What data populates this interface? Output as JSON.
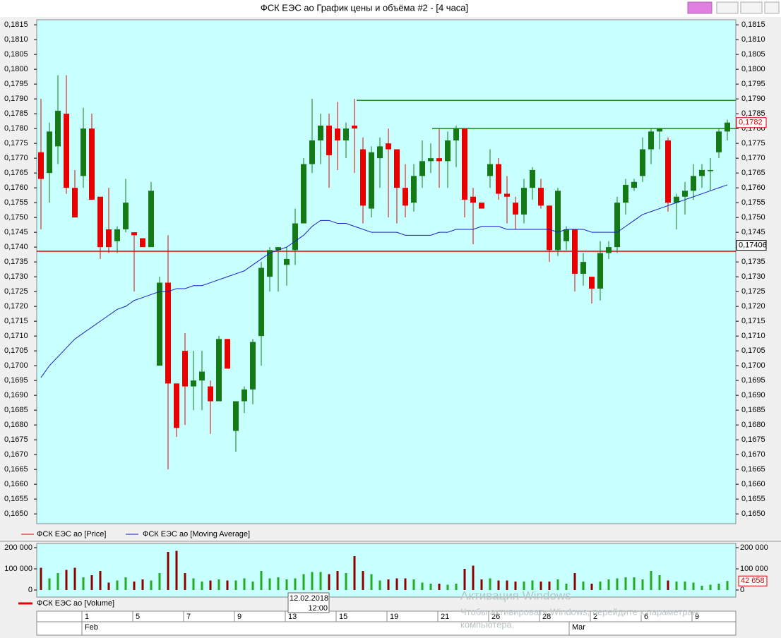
{
  "window": {
    "title": "ФСК ЕЭС ао График цены и объёма #2 - [4 часа]"
  },
  "chart_data": [
    {
      "type": "candlestick",
      "series": [
        {
          "name": "ФСК ЕЭС ао [Price]",
          "color_up": "#157a15",
          "color_down": "#e60000",
          "open": [
            0.1772,
            0.1765,
            0.1774,
            0.1785,
            0.176,
            0.1764,
            0.178,
            0.1757,
            0.1746,
            0.1742,
            0.1746,
            0.1745,
            0.1743,
            0.174,
            0.17,
            0.1728,
            0.1694,
            0.1705,
            0.1693,
            0.1695,
            0.1693,
            0.1688,
            0.1709,
            0.1678,
            0.1688,
            0.1692,
            0.171,
            0.173,
            0.1739,
            0.1734,
            0.1739,
            0.1748,
            0.1768,
            0.1776,
            0.1781,
            0.178,
            0.1776,
            0.1781,
            0.1773,
            0.1753,
            0.177,
            0.1775,
            0.1773,
            0.176,
            0.1755,
            0.1764,
            0.1769,
            0.177,
            0.1769,
            0.1776,
            0.178,
            0.1757,
            0.1755,
            0.1764,
            0.1768,
            0.1758,
            0.1755,
            0.1751,
            0.176,
            0.176,
            0.1754,
            0.1739,
            0.1742,
            0.1746,
            0.1731,
            0.173,
            0.1726,
            0.1738,
            0.174,
            0.1755,
            0.176,
            0.1764,
            0.1773,
            0.1779,
            0.1776,
            0.1755,
            0.1757,
            0.1759,
            0.1764,
            0.1766,
            0.1772,
            0.1779
          ],
          "high": [
            0.179,
            0.1782,
            0.1798,
            0.1798,
            0.1766,
            0.1787,
            0.1785,
            0.1757,
            0.176,
            0.1747,
            0.1763,
            0.1745,
            0.1743,
            0.1762,
            0.173,
            0.1744,
            0.1694,
            0.1711,
            0.1705,
            0.1705,
            0.1695,
            0.171,
            0.1709,
            0.1688,
            0.1693,
            0.1709,
            0.1735,
            0.174,
            0.174,
            0.174,
            0.1753,
            0.177,
            0.179,
            0.1785,
            0.1785,
            0.1789,
            0.1782,
            0.179,
            0.1777,
            0.1774,
            0.1777,
            0.178,
            0.1773,
            0.1768,
            0.1768,
            0.1776,
            0.1775,
            0.178,
            0.1779,
            0.1781,
            0.178,
            0.176,
            0.1755,
            0.1773,
            0.177,
            0.1764,
            0.1757,
            0.1763,
            0.1767,
            0.1763,
            0.1754,
            0.176,
            0.1747,
            0.1746,
            0.1738,
            0.173,
            0.1742,
            0.1742,
            0.1757,
            0.1763,
            0.1763,
            0.1777,
            0.178,
            0.178,
            0.1777,
            0.1758,
            0.1762,
            0.1768,
            0.1768,
            0.177,
            0.178,
            0.1783
          ],
          "low": [
            0.1746,
            0.1755,
            0.1768,
            0.1758,
            0.175,
            0.176,
            0.1756,
            0.1736,
            0.1738,
            0.1738,
            0.1745,
            0.1725,
            0.174,
            0.174,
            0.17,
            0.1665,
            0.1676,
            0.168,
            0.1685,
            0.1685,
            0.1677,
            0.1688,
            0.1699,
            0.1671,
            0.1684,
            0.1687,
            0.17,
            0.1725,
            0.1725,
            0.1727,
            0.1734,
            0.1748,
            0.1765,
            0.1768,
            0.176,
            0.1766,
            0.177,
            0.1765,
            0.1748,
            0.175,
            0.176,
            0.175,
            0.1748,
            0.175,
            0.1752,
            0.176,
            0.1765,
            0.176,
            0.176,
            0.1767,
            0.175,
            0.1741,
            0.1753,
            0.176,
            0.1756,
            0.1748,
            0.1746,
            0.1748,
            0.1756,
            0.1753,
            0.1735,
            0.1737,
            0.1739,
            0.1725,
            0.1727,
            0.1721,
            0.1722,
            0.1736,
            0.1738,
            0.1751,
            0.1759,
            0.1762,
            0.1768,
            0.1773,
            0.1752,
            0.1746,
            0.1751,
            0.1756,
            0.176,
            0.1759,
            0.177,
            0.1776
          ],
          "close": [
            0.1763,
            0.1779,
            0.1786,
            0.176,
            0.175,
            0.178,
            0.1756,
            0.174,
            0.174,
            0.1746,
            0.1755,
            0.1744,
            0.174,
            0.1759,
            0.1728,
            0.1694,
            0.1679,
            0.1693,
            0.1695,
            0.1698,
            0.1688,
            0.1709,
            0.1699,
            0.1688,
            0.1692,
            0.1708,
            0.1733,
            0.1739,
            0.174,
            0.1736,
            0.1748,
            0.1768,
            0.1776,
            0.1781,
            0.1771,
            0.1776,
            0.178,
            0.178,
            0.1754,
            0.1772,
            0.1774,
            0.1773,
            0.176,
            0.1754,
            0.1764,
            0.1769,
            0.177,
            0.1769,
            0.1776,
            0.178,
            0.1756,
            0.1755,
            0.1753,
            0.1768,
            0.1758,
            0.1757,
            0.1751,
            0.176,
            0.1766,
            0.1754,
            0.1739,
            0.1759,
            0.1746,
            0.1731,
            0.1735,
            0.1726,
            0.1738,
            0.174,
            0.1755,
            0.1761,
            0.1762,
            0.1773,
            0.1779,
            0.178,
            0.1755,
            0.1757,
            0.1759,
            0.1764,
            0.1766,
            0.1766,
            0.1779,
            0.1782
          ]
        },
        {
          "name": "ФСК ЕЭС ао [Moving Average]",
          "color": "#1c1cc8",
          "values": [
            0.1696,
            0.17,
            0.1703,
            0.1706,
            0.1709,
            0.1711,
            0.1713,
            0.1715,
            0.1717,
            0.1719,
            0.172,
            0.1722,
            0.1723,
            0.1724,
            0.1725,
            0.1725,
            0.1726,
            0.1726,
            0.1727,
            0.1727,
            0.1728,
            0.1729,
            0.173,
            0.1731,
            0.1732,
            0.1734,
            0.1736,
            0.1738,
            0.1739,
            0.174,
            0.1742,
            0.1744,
            0.1747,
            0.1749,
            0.1749,
            0.1748,
            0.1748,
            0.1747,
            0.1746,
            0.1745,
            0.1745,
            0.1745,
            0.1745,
            0.1744,
            0.1744,
            0.1744,
            0.1744,
            0.1745,
            0.1745,
            0.1746,
            0.1746,
            0.1746,
            0.1747,
            0.1747,
            0.1747,
            0.1746,
            0.1746,
            0.1746,
            0.1746,
            0.1746,
            0.1746,
            0.1745,
            0.1746,
            0.1746,
            0.1746,
            0.1745,
            0.1745,
            0.1745,
            0.1745,
            0.1747,
            0.1749,
            0.1751,
            0.1752,
            0.1753,
            0.1754,
            0.1755,
            0.1756,
            0.1757,
            0.1758,
            0.1759,
            0.176,
            0.1761
          ]
        }
      ],
      "ylim": [
        0.16467,
        0.18167
      ],
      "yticks": [
        {
          "value": 0.165,
          "label": "0,1650"
        },
        {
          "value": 0.1655,
          "label": "0,1655"
        },
        {
          "value": 0.166,
          "label": "0,1660"
        },
        {
          "value": 0.1665,
          "label": "0,1665"
        },
        {
          "value": 0.167,
          "label": "0,1670"
        },
        {
          "value": 0.1675,
          "label": "0,1675"
        },
        {
          "value": 0.168,
          "label": "0,1680"
        },
        {
          "value": 0.1685,
          "label": "0,1685"
        },
        {
          "value": 0.169,
          "label": "0,1690"
        },
        {
          "value": 0.1695,
          "label": "0,1695"
        },
        {
          "value": 0.17,
          "label": "0,1700"
        },
        {
          "value": 0.1705,
          "label": "0,1705"
        },
        {
          "value": 0.171,
          "label": "0,1710"
        },
        {
          "value": 0.1715,
          "label": "0,1715"
        },
        {
          "value": 0.172,
          "label": "0,1720"
        },
        {
          "value": 0.1725,
          "label": "0,1725"
        },
        {
          "value": 0.173,
          "label": "0,1730"
        },
        {
          "value": 0.1735,
          "label": "0,1735"
        },
        {
          "value": 0.174,
          "label": "0,1740"
        },
        {
          "value": 0.1745,
          "label": "0,1745"
        },
        {
          "value": 0.175,
          "label": "0,1750"
        },
        {
          "value": 0.1755,
          "label": "0,1755"
        },
        {
          "value": 0.176,
          "label": "0,1760"
        },
        {
          "value": 0.1765,
          "label": "0,1765"
        },
        {
          "value": 0.177,
          "label": "0,1770"
        },
        {
          "value": 0.1775,
          "label": "0,1775"
        },
        {
          "value": 0.178,
          "label": "0,1780"
        },
        {
          "value": 0.1785,
          "label": "0,1785"
        },
        {
          "value": 0.179,
          "label": "0,1790"
        },
        {
          "value": 0.1795,
          "label": "0,1795"
        },
        {
          "value": 0.18,
          "label": "0,1800"
        },
        {
          "value": 0.1805,
          "label": "0,1805"
        },
        {
          "value": 0.181,
          "label": "0,1810"
        },
        {
          "value": 0.1815,
          "label": "0,1815"
        }
      ],
      "current_labels": [
        {
          "value": 0.1782,
          "label": "0,1782",
          "color": "#e60000"
        },
        {
          "value": 0.17406,
          "label": "0,17406",
          "color": "#000000"
        }
      ],
      "levels": [
        {
          "value": 0.17386,
          "color": "#e60000"
        },
        {
          "value": 0.17895,
          "color": "#1a8a1a"
        },
        {
          "value": 0.178,
          "color": "#1a8a1a"
        }
      ]
    },
    {
      "type": "bar",
      "series": [
        {
          "name": "ФСК ЕЭС ао [Volume]",
          "color_up": "#22aa22",
          "color_down": "#8b0000",
          "values": [
            105000,
            55000,
            80000,
            95000,
            105000,
            60000,
            70000,
            90000,
            35000,
            45000,
            60000,
            40000,
            50000,
            45000,
            80000,
            180000,
            185000,
            80000,
            55000,
            40000,
            45000,
            50000,
            45000,
            45000,
            55000,
            40000,
            90000,
            55000,
            60000,
            50000,
            55000,
            75000,
            85000,
            85000,
            75000,
            90000,
            80000,
            160000,
            90000,
            75000,
            45000,
            50000,
            55000,
            55000,
            50000,
            35000,
            30000,
            30000,
            25000,
            30000,
            100000,
            115000,
            50000,
            55000,
            45000,
            45000,
            40000,
            40000,
            45000,
            40000,
            40000,
            50000,
            30000,
            80000,
            40000,
            30000,
            40000,
            50000,
            55000,
            60000,
            60000,
            50000,
            90000,
            70000,
            45000,
            40000,
            40000,
            35000,
            20000,
            25000,
            30000,
            42658
          ]
        }
      ],
      "ylim": [
        0,
        200000
      ],
      "yticks": [
        0,
        {
          "value": 100000,
          "label": "100 000"
        },
        {
          "value": 200000,
          "label": "200 000"
        }
      ],
      "current_label": {
        "value": 42658,
        "label": "42 658",
        "color": "#e60000"
      }
    }
  ],
  "date_axis": {
    "days": [
      "1",
      "5",
      "7",
      "9",
      "13",
      "15",
      "19",
      "21",
      "26",
      "28",
      "2",
      "6",
      "9"
    ],
    "months": [
      "Feb",
      "Mar"
    ],
    "tooltip": [
      "12.02.2018",
      "12:00"
    ]
  },
  "watermark": {
    "title": "Активация Windows",
    "lines": [
      "Чтобы активировать Windows, перейдите к параметрам",
      "компьютера."
    ]
  }
}
